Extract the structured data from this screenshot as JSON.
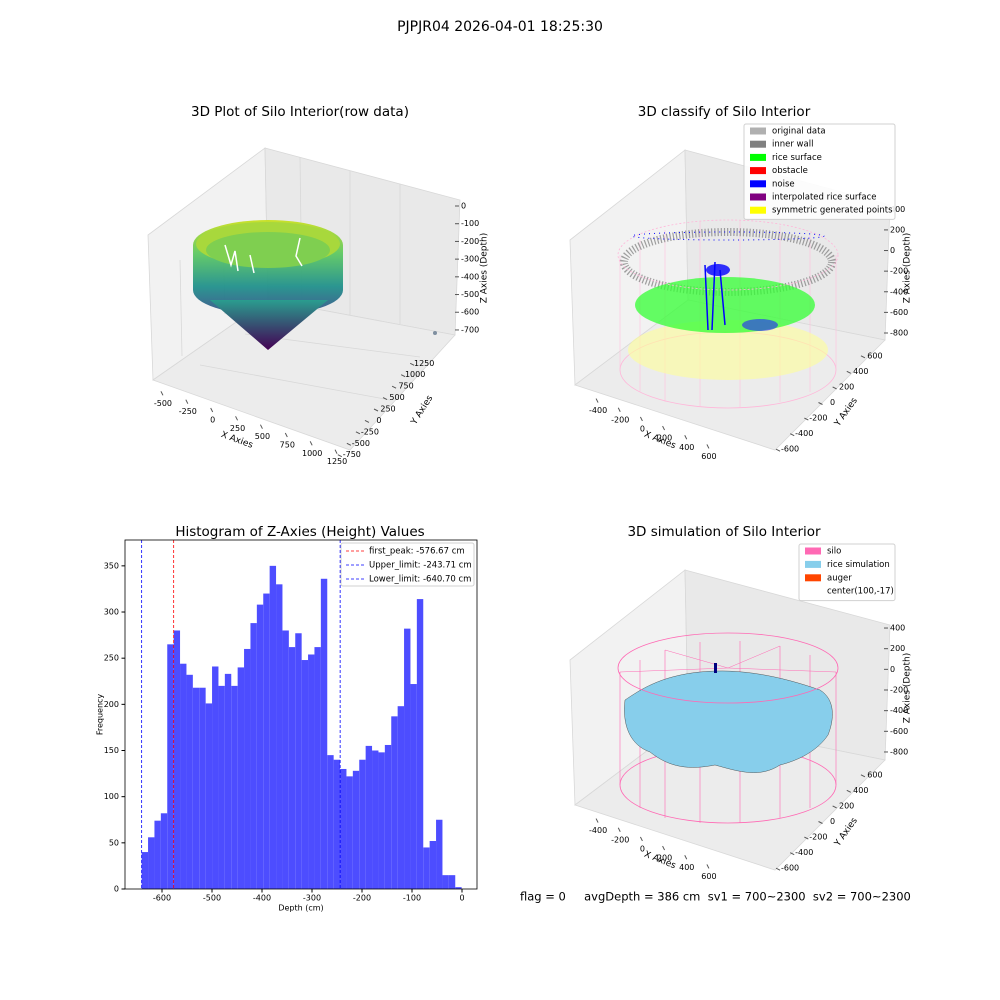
{
  "suptitle": "PJPJR04 2026-04-01 18:25:30",
  "footer": "flag = 0     avgDepth = 386 cm  sv1 = 700~2300  sv2 = 700~2300",
  "chart_data": [
    {
      "type": "scatter3d",
      "title": "3D Plot of Silo Interior(row data)",
      "xlabel": "X Axies",
      "ylabel": "Y Axies",
      "zlabel": "Z Axies (Depth)",
      "xlim": [
        -600,
        1350
      ],
      "xticks": [
        -500,
        -250,
        0,
        250,
        500,
        750,
        1000,
        1250
      ],
      "ylim": [
        -800,
        1300
      ],
      "yticks": [
        -750,
        -500,
        -250,
        0,
        250,
        500,
        750,
        1000,
        1250
      ],
      "zlim": [
        -750,
        30
      ],
      "zticks": [
        0,
        -100,
        -200,
        -300,
        -400,
        -500,
        -600,
        -700
      ]
    },
    {
      "type": "classify3d",
      "title": "3D classify of Silo Interior",
      "xlabel": "X Axies",
      "ylabel": "Y Axies",
      "zlabel": "Z Axies (Depth)",
      "xlim": [
        -500,
        700
      ],
      "xticks": [
        -400,
        -200,
        0,
        200,
        400,
        600
      ],
      "ylim": [
        -700,
        700
      ],
      "yticks": [
        -600,
        -400,
        -200,
        0,
        200,
        400,
        600
      ],
      "zlim": [
        -900,
        500
      ],
      "zticks": [
        400,
        200,
        0,
        -200,
        -400,
        -600,
        -800
      ],
      "series": [
        {
          "name": "original data",
          "color": "#b0b0b0"
        },
        {
          "name": "inner wall",
          "color": "#808080"
        },
        {
          "name": "rice surface",
          "color": "#00ff00"
        },
        {
          "name": "obstacle",
          "color": "#ff0000"
        },
        {
          "name": "noise",
          "color": "#0000ff"
        },
        {
          "name": "interpolated rice surface",
          "color": "#800080"
        },
        {
          "name": "symmetric generated points",
          "color": "#ffff00"
        }
      ]
    },
    {
      "type": "histogram",
      "title": "Histogram of Z-Axies (Height) Values",
      "xlabel": "Depth (cm)",
      "ylabel": "Frequency",
      "color": "#4d4dff",
      "bins": [
        -640.7,
        -627.9,
        -615.1,
        -602.3,
        -589.5,
        -576.7,
        -563.9,
        -551.1,
        -538.3,
        -525.5,
        -512.7,
        -499.9,
        -487.1,
        -474.3,
        -461.5,
        -448.7,
        -435.9,
        -423.1,
        -410.3,
        -397.5,
        -384.7,
        -371.9,
        -359.1,
        -346.3,
        -333.5,
        -320.7,
        -307.9,
        -295.1,
        -282.3,
        -269.5,
        -256.7,
        -243.9,
        -231.1,
        -218.3,
        -205.5,
        -192.7,
        -179.9,
        -167.1,
        -154.3,
        -141.5,
        -128.7,
        -115.9,
        -103.1,
        -90.3,
        -77.5,
        -64.7,
        -51.9,
        -39.1,
        -26.3,
        -13.5,
        -0.7
      ],
      "values": [
        40,
        56,
        74,
        82,
        265,
        280,
        244,
        232,
        218,
        218,
        201,
        241,
        220,
        233,
        220,
        240,
        260,
        288,
        308,
        320,
        350,
        330,
        280,
        262,
        277,
        248,
        254,
        262,
        336,
        145,
        140,
        130,
        122,
        128,
        140,
        155,
        150,
        148,
        156,
        187,
        198,
        282,
        222,
        314,
        45,
        52,
        75,
        15,
        15,
        2
      ],
      "xlim": [
        -674,
        30
      ],
      "xticks": [
        -600,
        -500,
        -400,
        -300,
        -200,
        -100,
        0
      ],
      "ylim": [
        0,
        378
      ],
      "yticks": [
        0,
        50,
        100,
        150,
        200,
        250,
        300,
        350
      ],
      "vlines": [
        {
          "name": "first_peak: -576.67 cm",
          "color": "#ff0000",
          "value": -576.67
        },
        {
          "name": "Upper_limit: -243.71 cm",
          "color": "#0000ff",
          "value": -243.71
        },
        {
          "name": "Lower_limit: -640.70 cm",
          "color": "#0000ff",
          "value": -640.7
        }
      ]
    },
    {
      "type": "surface3d",
      "title": "3D simulation of Silo Interior",
      "xlabel": "X Axies",
      "ylabel": "Y Axies",
      "zlabel": "Z Axies (Depth)",
      "xlim": [
        -500,
        700
      ],
      "xticks": [
        -400,
        -200,
        0,
        200,
        400,
        600
      ],
      "ylim": [
        -700,
        700
      ],
      "yticks": [
        -600,
        -400,
        -200,
        0,
        200,
        400,
        600
      ],
      "zlim": [
        -900,
        500
      ],
      "zticks": [
        400,
        200,
        0,
        -200,
        -400,
        -600,
        -800
      ],
      "series": [
        {
          "name": "silo",
          "color": "#ff69b4"
        },
        {
          "name": "rice simulation",
          "color": "#87ceeb"
        },
        {
          "name": "auger",
          "color": "#ff4500"
        },
        {
          "name": "center(100,-17)"
        }
      ]
    }
  ]
}
